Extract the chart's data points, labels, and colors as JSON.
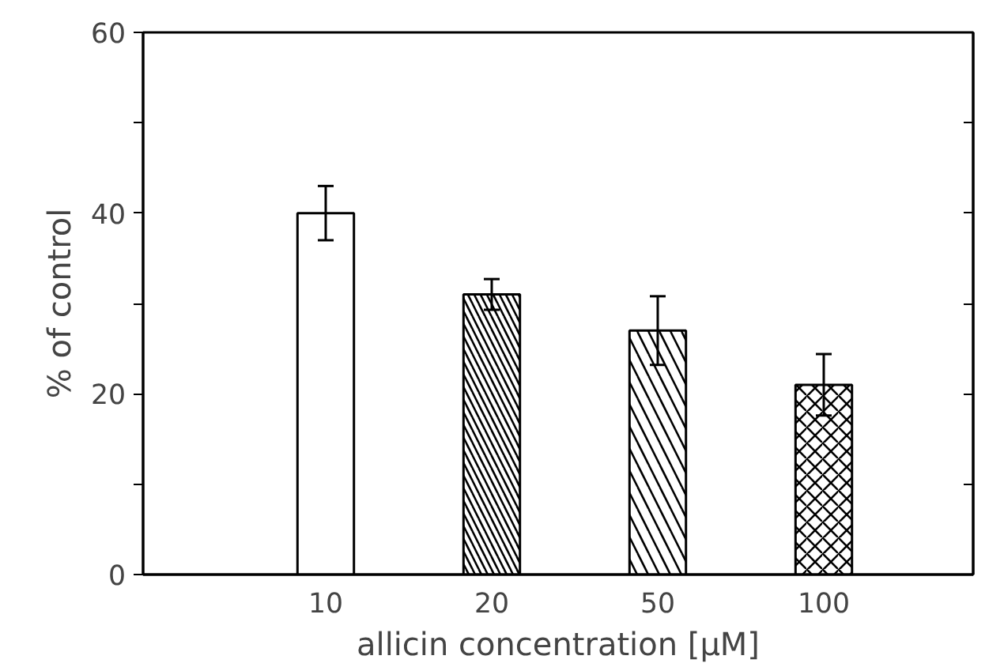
{
  "chart_data": {
    "type": "bar",
    "xlabel": "allicin concentration [μM]",
    "ylabel": "% of control",
    "categories": [
      "10",
      "20",
      "50",
      "100"
    ],
    "values": [
      40,
      31,
      27,
      21
    ],
    "errors": [
      3,
      1.7,
      3.8,
      3.4
    ],
    "colors": [
      "#ffffff",
      "#ffffff",
      "#ffffff",
      "#ffffff"
    ],
    "ylim": [
      0,
      60
    ],
    "yticks": [
      0,
      {
        "value": 10,
        "label": null
      },
      20,
      {
        "value": 30,
        "label": null
      },
      40,
      {
        "value": 50,
        "label": null
      },
      60
    ],
    "grid": false
  }
}
